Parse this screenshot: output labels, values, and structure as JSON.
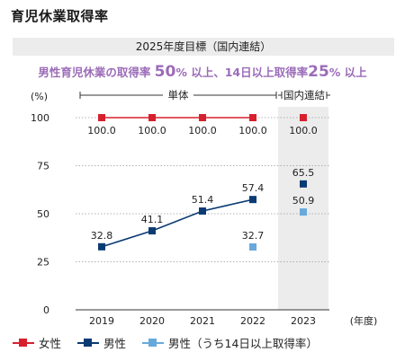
{
  "page_title": "育児休業取得率",
  "target_banner": "2025年度目標（国内連結）",
  "goal": {
    "prefix": "男性育児休業の取得率 ",
    "value1": "50",
    "mid": "% 以上、14日以上取得率",
    "value2": "25",
    "suffix": "% 以上"
  },
  "colors": {
    "female": "#d7202e",
    "male": "#0b3b73",
    "male14": "#68a9dc",
    "highlight_bg": "#ececec",
    "goal_text": "#9b6cb8"
  },
  "chart_data": {
    "type": "line",
    "title": "",
    "ylabel": "(%)",
    "xlabel": "(年度)",
    "ylim": [
      0,
      100
    ],
    "yticks": [
      0,
      25,
      50,
      75,
      100
    ],
    "categories": [
      "2019",
      "2020",
      "2021",
      "2022",
      "2023"
    ],
    "grid": true,
    "brackets": [
      {
        "label": "単体",
        "from": "2019",
        "to": "2022"
      },
      {
        "label": "国内連結",
        "from": "2023",
        "to": "2023"
      }
    ],
    "highlight_category": "2023",
    "series": [
      {
        "name": "女性",
        "color": "#d7202e",
        "values": [
          100.0,
          100.0,
          100.0,
          100.0,
          100.0
        ],
        "labels": [
          "100.0",
          "100.0",
          "100.0",
          "100.0",
          "100.0"
        ],
        "connect_upto": 3
      },
      {
        "name": "男性",
        "color": "#0b3b73",
        "values": [
          32.8,
          41.1,
          51.4,
          57.4,
          65.5
        ],
        "labels": [
          "32.8",
          "41.1",
          "51.4",
          "57.4",
          "65.5"
        ],
        "connect_upto": 3
      },
      {
        "name": "男性（うち14日以上取得率）",
        "color": "#68a9dc",
        "values": [
          null,
          null,
          null,
          32.7,
          50.9
        ],
        "labels": [
          "",
          "",
          "",
          "32.7",
          "50.9"
        ],
        "connect_upto": -1
      }
    ]
  },
  "legend": [
    {
      "label": "女性",
      "color": "#d7202e"
    },
    {
      "label": "男性",
      "color": "#0b3b73"
    },
    {
      "label": "男性（うち14日以上取得率）",
      "color": "#68a9dc"
    }
  ]
}
